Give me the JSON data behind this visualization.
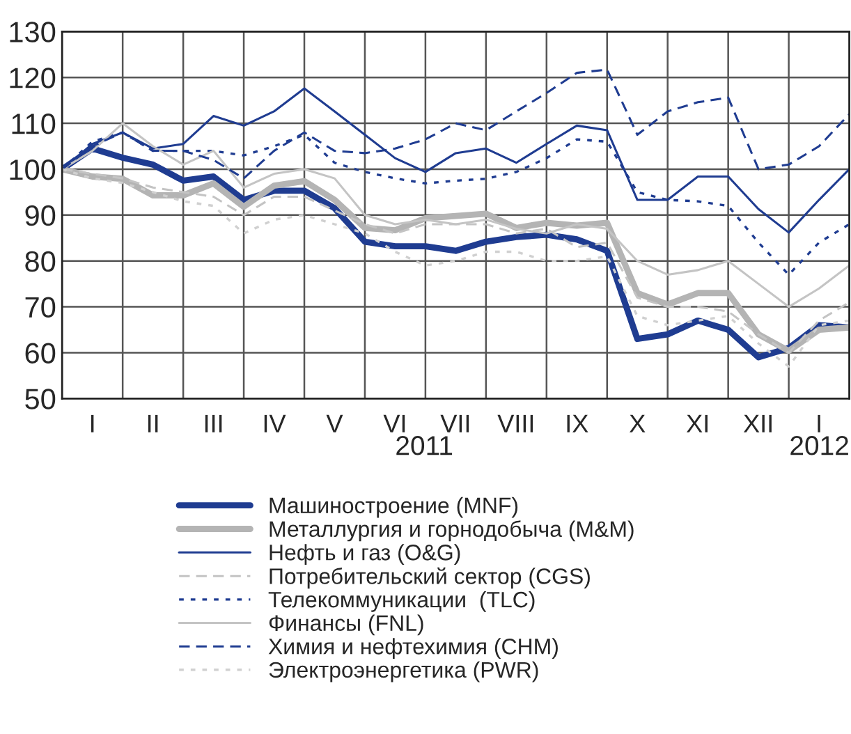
{
  "chart_data": {
    "type": "line",
    "categories": [
      null,
      "I",
      null,
      "II",
      null,
      "III",
      null,
      "IV",
      null,
      "V",
      null,
      "VI",
      null,
      "VII",
      null,
      "VIII",
      null,
      "IX",
      null,
      "X",
      null,
      "XI",
      null,
      "XII",
      null,
      "I",
      null
    ],
    "series": [
      {
        "name": "Машиностроение (MNF)",
        "color": "#1f3c91",
        "line_style": "solid",
        "values": [
          100,
          104.5,
          102.5,
          101,
          97.5,
          98.4,
          93.3,
          95.3,
          95.3,
          91.5,
          84.2,
          83.2,
          83.2,
          82.2,
          84.2,
          85.2,
          85.7,
          84.7,
          82.2,
          63,
          64,
          67,
          65,
          59,
          61,
          66,
          65.5
        ]
      },
      {
        "name": "Металлургия и горнодобыча (M&M)",
        "color": "#b4b4b4",
        "line_style": "solid",
        "values": [
          100,
          98.4,
          97.9,
          94.3,
          94.3,
          96.9,
          91.8,
          96.4,
          97.4,
          93.3,
          87.2,
          86.7,
          89.3,
          89.8,
          90.3,
          87.2,
          88.3,
          87.7,
          88.3,
          73,
          70.5,
          73,
          73,
          64,
          60.4,
          65,
          65.5
        ]
      },
      {
        "name": "Нефть и газ (O&G)",
        "color": "#1f3c91",
        "line_style": "solid",
        "values": [
          100,
          105.5,
          108,
          104.5,
          105.5,
          111.6,
          109.5,
          112.6,
          117.6,
          112.6,
          107.5,
          102.4,
          99.4,
          103.5,
          104.5,
          101.4,
          105.5,
          109.5,
          108.5,
          93.3,
          93.3,
          98.4,
          98.4,
          91.3,
          86.2,
          93.3,
          100
        ]
      },
      {
        "name": "Потребительский сектор (CGS)",
        "color": "#c4c4c4",
        "line_style": "dashed",
        "values": [
          100,
          99,
          98,
          96,
          95,
          94,
          90,
          94,
          94,
          91,
          88,
          86,
          88,
          88,
          88,
          86,
          87,
          83,
          84,
          72,
          70,
          70,
          69,
          64,
          60,
          67,
          71
        ]
      },
      {
        "name": "Телекоммуникации  (TLC)",
        "color": "#1f3c91",
        "line_style": "dotted",
        "values": [
          100,
          106,
          108,
          104,
          104,
          104,
          103,
          105,
          107.5,
          101.4,
          99.4,
          98,
          96.9,
          97.5,
          97.9,
          99.4,
          102.4,
          106.5,
          106,
          95,
          93.3,
          93,
          92,
          84,
          77,
          84,
          88
        ]
      },
      {
        "name": "Финансы (FNL)",
        "color": "#c4c4c4",
        "line_style": "solid",
        "values": [
          100,
          104,
          110,
          105,
          101,
          104,
          96,
          99,
          100,
          98,
          90,
          88,
          89,
          88,
          89,
          87,
          86,
          88,
          87,
          80,
          77,
          78,
          80,
          75,
          70,
          74,
          79
        ]
      },
      {
        "name": "Химия и нефтехимия (CHM)",
        "color": "#1f3c91",
        "line_style": "dashed",
        "values": [
          100,
          105,
          108,
          104,
          104,
          102,
          98,
          104,
          108,
          104,
          103.5,
          104.5,
          106.5,
          110,
          108.5,
          112.6,
          116.6,
          121,
          121.7,
          107.5,
          112.6,
          114.6,
          115.6,
          100,
          101,
          105,
          112
        ]
      },
      {
        "name": "Электроэнергетика (PWR)",
        "color": "#d0d0d0",
        "line_style": "dotted",
        "values": [
          100,
          98,
          97,
          95,
          93,
          92,
          86,
          89,
          90,
          88,
          86,
          82,
          79,
          80,
          82,
          82,
          80,
          80,
          81,
          68,
          66,
          67,
          68,
          62,
          57,
          66,
          67
        ]
      }
    ],
    "ylim": [
      50,
      130
    ],
    "yticks": [
      50,
      60,
      70,
      80,
      90,
      100,
      110,
      120,
      130
    ],
    "annotations": [
      "2011",
      "2012"
    ],
    "grid": true,
    "legend": "bottom"
  }
}
